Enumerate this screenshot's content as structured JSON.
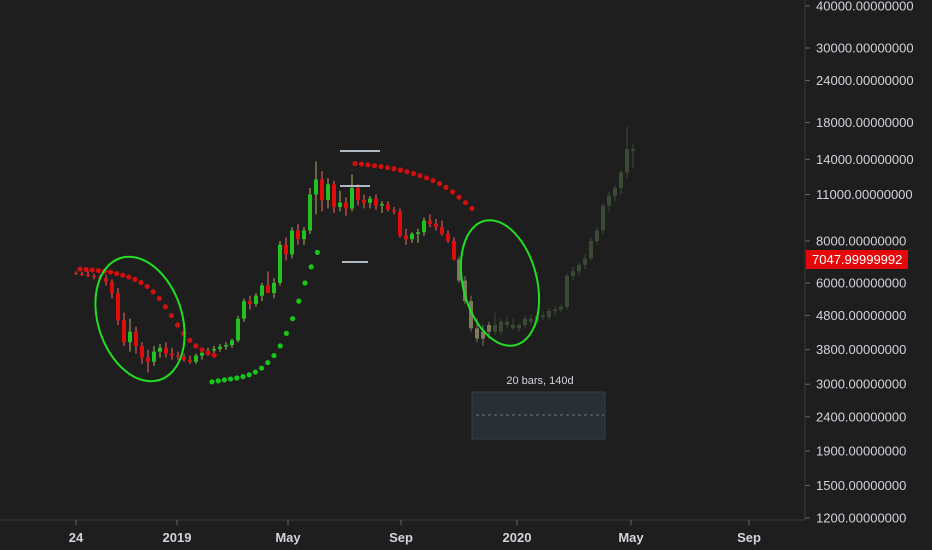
{
  "chart_data": {
    "type": "candlestick",
    "title": "",
    "y_scale": "log",
    "ylim": [
      1200,
      40000
    ],
    "y_ticks": [
      "40000.00000000",
      "30000.00000000",
      "24000.00000000",
      "18000.00000000",
      "14000.00000000",
      "11000.00000000",
      "8000.00000000",
      "6000.00000000",
      "4800.00000000",
      "3800.00000000",
      "3000.00000000",
      "2400.00000000",
      "1900.00000000",
      "1500.00000000",
      "1200.00000000"
    ],
    "x_ticks": [
      "24",
      "2019",
      "May",
      "Sep",
      "2020",
      "May",
      "Sep"
    ],
    "last_price_label": "7047.99999992",
    "last_price": 7048,
    "measure_label": "20 bars, 140d",
    "colors": {
      "up": "#21c121",
      "down": "#e00b0b",
      "sar_up": "#17c617",
      "sar_down": "#d00f0f",
      "projection": "#3a4a34",
      "ellipse": "#22dd22",
      "background": "#1e1e1e"
    },
    "candles": [
      [
        6420,
        6500,
        6340,
        6380
      ],
      [
        6380,
        6480,
        6300,
        6350
      ],
      [
        6350,
        6520,
        6250,
        6300
      ],
      [
        6300,
        6400,
        6150,
        6250
      ],
      [
        6250,
        6350,
        6100,
        6200
      ],
      [
        6200,
        6350,
        5900,
        6050
      ],
      [
        6050,
        6150,
        5400,
        5600
      ],
      [
        5600,
        5800,
        4500,
        4650
      ],
      [
        4650,
        4900,
        3900,
        4000
      ],
      [
        4000,
        4700,
        3750,
        4300
      ],
      [
        4300,
        4450,
        3700,
        3900
      ],
      [
        3900,
        4000,
        3450,
        3600
      ],
      [
        3600,
        3800,
        3250,
        3500
      ],
      [
        3500,
        3900,
        3400,
        3750
      ],
      [
        3750,
        3950,
        3600,
        3850
      ],
      [
        3850,
        4000,
        3600,
        3700
      ],
      [
        3700,
        3850,
        3550,
        3650
      ],
      [
        3650,
        3750,
        3550,
        3620
      ],
      [
        3620,
        3700,
        3500,
        3550
      ],
      [
        3550,
        3650,
        3450,
        3500
      ],
      [
        3500,
        3700,
        3450,
        3650
      ],
      [
        3650,
        3800,
        3550,
        3720
      ],
      [
        3720,
        3850,
        3650,
        3780
      ],
      [
        3780,
        3900,
        3700,
        3820
      ],
      [
        3820,
        3950,
        3750,
        3880
      ],
      [
        3880,
        4000,
        3800,
        3920
      ],
      [
        3920,
        4100,
        3850,
        4050
      ],
      [
        4050,
        4800,
        4000,
        4700
      ],
      [
        4700,
        5400,
        4600,
        5300
      ],
      [
        5300,
        5500,
        5000,
        5200
      ],
      [
        5200,
        5600,
        5100,
        5500
      ],
      [
        5500,
        6000,
        5300,
        5900
      ],
      [
        5900,
        6500,
        5700,
        5600
      ],
      [
        5600,
        6200,
        5400,
        6000
      ],
      [
        6000,
        8000,
        5900,
        7800
      ],
      [
        7800,
        8200,
        7000,
        7300
      ],
      [
        7300,
        8800,
        7100,
        8600
      ],
      [
        8600,
        9000,
        7800,
        8100
      ],
      [
        8100,
        8800,
        7800,
        8600
      ],
      [
        8600,
        11500,
        8400,
        11000
      ],
      [
        11000,
        13800,
        9600,
        12200
      ],
      [
        12200,
        12900,
        9800,
        10600
      ],
      [
        10600,
        12300,
        10000,
        11800
      ],
      [
        11800,
        12100,
        9700,
        10100
      ],
      [
        10100,
        11300,
        9800,
        10400
      ],
      [
        10400,
        10800,
        9500,
        10000
      ],
      [
        10000,
        12600,
        9800,
        11500
      ],
      [
        11500,
        11800,
        10200,
        10600
      ],
      [
        10600,
        11000,
        10000,
        10400
      ],
      [
        10400,
        10900,
        10000,
        10700
      ],
      [
        10700,
        11000,
        9900,
        10200
      ],
      [
        10200,
        10500,
        9700,
        10300
      ],
      [
        10300,
        10500,
        9800,
        9900
      ],
      [
        9900,
        10100,
        9600,
        9800
      ],
      [
        9800,
        10000,
        8200,
        8300
      ],
      [
        8300,
        8700,
        7800,
        8100
      ],
      [
        8100,
        8500,
        7900,
        8400
      ],
      [
        8400,
        8700,
        7900,
        8500
      ],
      [
        8500,
        9400,
        8300,
        9200
      ],
      [
        9200,
        9600,
        8800,
        9000
      ],
      [
        9000,
        9300,
        8600,
        8800
      ],
      [
        8800,
        9200,
        8300,
        8400
      ],
      [
        8400,
        8600,
        7900,
        8000
      ],
      [
        8000,
        8200,
        7000,
        7048
      ]
    ],
    "projection": [
      [
        7048,
        7200,
        6000,
        6100
      ],
      [
        6100,
        6300,
        5200,
        5300
      ],
      [
        5300,
        5500,
        4300,
        4400
      ],
      [
        4400,
        4700,
        4000,
        4100
      ],
      [
        4100,
        4500,
        3900,
        4300
      ],
      [
        4300,
        4600,
        4100,
        4500
      ],
      [
        4500,
        4900,
        4200,
        4300
      ],
      [
        4300,
        4700,
        4200,
        4600
      ],
      [
        4600,
        4800,
        4400,
        4500
      ],
      [
        4500,
        4700,
        4350,
        4400
      ],
      [
        4400,
        4550,
        4300,
        4500
      ],
      [
        4500,
        4800,
        4400,
        4700
      ],
      [
        4700,
        4850,
        4500,
        4600
      ],
      [
        4600,
        4900,
        4500,
        4800
      ],
      [
        4800,
        4950,
        4650,
        4750
      ],
      [
        4750,
        5050,
        4650,
        4950
      ],
      [
        4950,
        5100,
        4800,
        5000
      ],
      [
        5000,
        5200,
        4900,
        5100
      ],
      [
        5100,
        6400,
        5000,
        6300
      ],
      [
        6300,
        6700,
        6100,
        6500
      ],
      [
        6500,
        6900,
        6300,
        6800
      ],
      [
        6800,
        7300,
        6600,
        7100
      ],
      [
        7100,
        8200,
        7000,
        8000
      ],
      [
        8000,
        8800,
        7800,
        8600
      ],
      [
        8600,
        10400,
        8400,
        10200
      ],
      [
        10200,
        11200,
        9800,
        10900
      ],
      [
        10900,
        11700,
        10500,
        11500
      ],
      [
        11500,
        13000,
        11000,
        12800
      ],
      [
        12800,
        17500,
        12300,
        15000
      ],
      [
        15000,
        15600,
        13200,
        14800
      ]
    ],
    "sar_down_1": [
      6600,
      6580,
      6560,
      6530,
      6500,
      6460,
      6400,
      6330,
      6250,
      6150,
      6020,
      5860,
      5650,
      5400,
      5100,
      4800,
      4500,
      4250,
      4050,
      3900,
      3800,
      3720,
      3660
    ],
    "sar_up_1": [
      3050,
      3070,
      3090,
      3110,
      3130,
      3160,
      3200,
      3260,
      3350,
      3480,
      3650,
      3900,
      4250,
      4700,
      5300,
      6000,
      6700,
      7400
    ],
    "sar_down_2": [
      13600,
      13550,
      13480,
      13400,
      13320,
      13230,
      13120,
      13000,
      12860,
      12700,
      12520,
      12320,
      12100,
      11850,
      11550,
      11200,
      10800,
      10400,
      10000
    ]
  }
}
